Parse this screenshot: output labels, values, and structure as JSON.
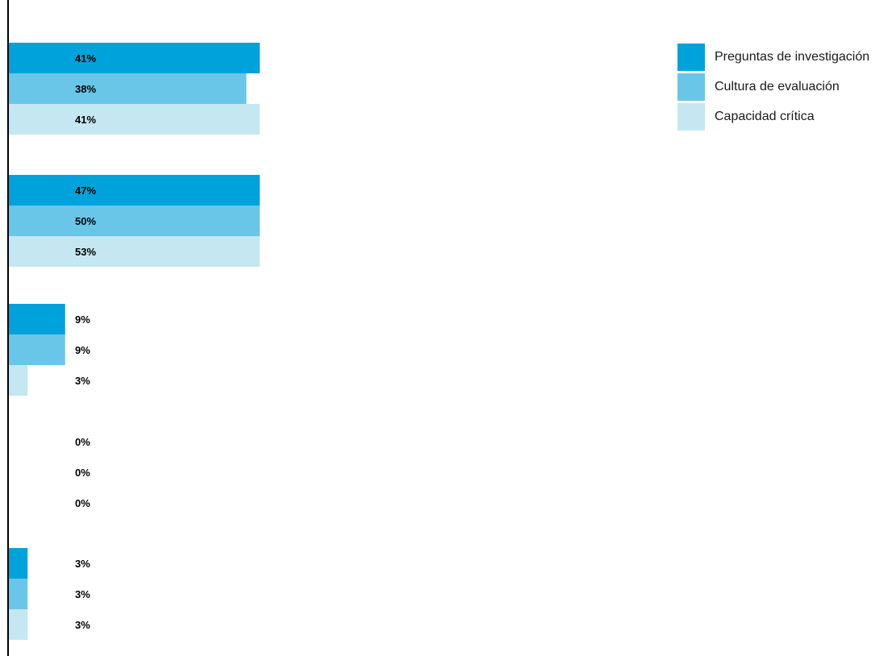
{
  "chart_data": {
    "type": "bar",
    "orientation": "horizontal",
    "categories": [
      "",
      "",
      "",
      "",
      ""
    ],
    "series": [
      {
        "name": "Preguntas de investigación",
        "color": "#00a2dc",
        "values": [
          41,
          47,
          9,
          0,
          3
        ],
        "labels": [
          "41%",
          "47%",
          "9%",
          "0%",
          "3%"
        ]
      },
      {
        "name": "Cultura de evaluación",
        "color": "#6ac6e8",
        "values": [
          38,
          50,
          9,
          0,
          3
        ],
        "labels": [
          "38%",
          "50%",
          "9%",
          "0%",
          "3%"
        ]
      },
      {
        "name": "Capacidad crítica",
        "color": "#c4e7f2",
        "values": [
          41,
          53,
          3,
          0,
          3
        ],
        "labels": [
          "41%",
          "53%",
          "3%",
          "0%",
          "3%"
        ]
      }
    ],
    "title": "",
    "xlabel": "",
    "ylabel": "",
    "legend_position": "top-right",
    "grid": false
  }
}
